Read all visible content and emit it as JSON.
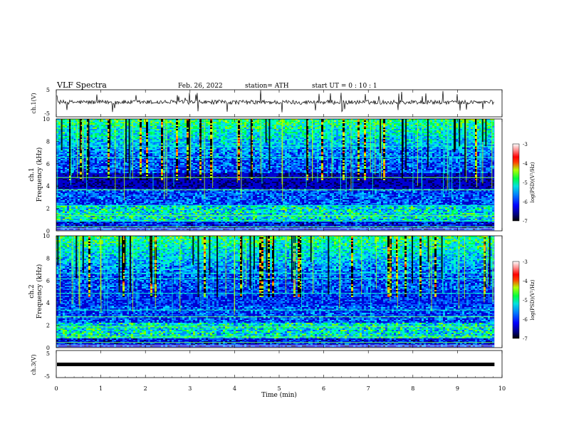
{
  "header": {
    "title": "VLF  Spectra",
    "date": "Feb. 26, 2022",
    "station": "station= ATH",
    "start": "start  UT  =   0  : 10 : 1"
  },
  "chart_data": [
    {
      "type": "line",
      "ylabel": "ch.1(V)",
      "ylim": [
        -5,
        5
      ],
      "yticks": [
        "5",
        "-5"
      ],
      "description_level": 0.4
    },
    {
      "type": "heatmap",
      "ylabel": "ch.1\nFrequency (kHz)",
      "ylim": [
        0,
        10
      ],
      "yticks": [
        "0",
        "2",
        "4",
        "6",
        "8",
        "10"
      ],
      "colorbar": {
        "label": "log(PSD)(V²/Hz)",
        "range": [
          -7,
          -3
        ],
        "ticks": [
          "-3",
          "-4",
          "-5",
          "-6",
          "-7"
        ]
      }
    },
    {
      "type": "heatmap",
      "ylabel": "ch.2\nFrequency (kHz)",
      "ylim": [
        0,
        10
      ],
      "yticks": [
        "0",
        "2",
        "4",
        "6",
        "8",
        "10"
      ],
      "colorbar": {
        "label": "log(PSD)(V²/Hz)",
        "range": [
          -7,
          -3
        ],
        "ticks": [
          "-3",
          "-4",
          "-5",
          "-6",
          "-7"
        ]
      }
    },
    {
      "type": "line",
      "ylabel": "ch.3(V)",
      "ylim": [
        -5,
        5
      ],
      "yticks": [
        "5",
        "-5"
      ]
    }
  ],
  "xaxis": {
    "label": "Time  (min)",
    "range": [
      0,
      10
    ],
    "ticks": [
      "0",
      "1",
      "2",
      "3",
      "4",
      "5",
      "6",
      "7",
      "8",
      "9",
      "10"
    ],
    "data_end": 9.83
  },
  "labels": {
    "p0": "ch.1(V)",
    "p1a": "ch.1",
    "p1b": "Frequency (kHz)",
    "p2a": "ch.2",
    "p2b": "Frequency (kHz)",
    "p3": "ch.3(V)",
    "cb1": "log(PSD)(V²/Hz)",
    "cb2": "log(PSD)(V²/Hz)"
  }
}
